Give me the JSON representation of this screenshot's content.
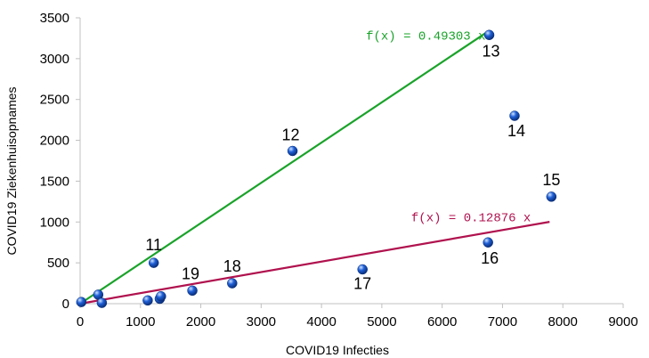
{
  "chart_data": {
    "type": "scatter",
    "title": "",
    "xlabel": "COVID19 Infecties",
    "ylabel": "COVID19 Ziekenhuisopnames",
    "xlim": [
      0,
      9000
    ],
    "ylim": [
      0,
      3500
    ],
    "x_ticks": [
      0,
      1000,
      2000,
      3000,
      4000,
      5000,
      6000,
      7000,
      8000,
      9000
    ],
    "y_ticks": [
      0,
      500,
      1000,
      1500,
      2000,
      2500,
      3000,
      3500
    ],
    "grid": false,
    "colors": {
      "points": "#1f5fd6",
      "trend_high": "#1aa32a",
      "trend_low": "#b0124e",
      "axis": "#c0c0c0"
    },
    "points": [
      {
        "x": 20,
        "y": 20,
        "label": ""
      },
      {
        "x": 300,
        "y": 110,
        "label": ""
      },
      {
        "x": 360,
        "y": 10,
        "label": ""
      },
      {
        "x": 1120,
        "y": 40,
        "label": ""
      },
      {
        "x": 1320,
        "y": 60,
        "label": ""
      },
      {
        "x": 1340,
        "y": 90,
        "label": ""
      },
      {
        "x": 1220,
        "y": 500,
        "label": "11"
      },
      {
        "x": 3520,
        "y": 1870,
        "label": "12"
      },
      {
        "x": 6780,
        "y": 3290,
        "label": "13"
      },
      {
        "x": 7200,
        "y": 2300,
        "label": "14"
      },
      {
        "x": 7810,
        "y": 1310,
        "label": "15"
      },
      {
        "x": 6760,
        "y": 750,
        "label": "16"
      },
      {
        "x": 4680,
        "y": 420,
        "label": "17"
      },
      {
        "x": 2520,
        "y": 250,
        "label": "18"
      },
      {
        "x": 1860,
        "y": 160,
        "label": "19"
      }
    ],
    "trendlines": [
      {
        "label": "f(x) = 0.49303 x",
        "slope": 0.49303,
        "x_range": [
          0,
          6780
        ]
      },
      {
        "label": "f(x) = 0.12876 x",
        "slope": 0.12876,
        "x_range": [
          0,
          7780
        ]
      }
    ]
  }
}
